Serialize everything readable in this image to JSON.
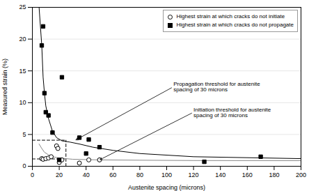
{
  "chart_data": {
    "type": "scatter",
    "xlabel": "Austenite spacing (microns)",
    "ylabel": "Measured strain (%)",
    "xlim": [
      0,
      200
    ],
    "ylim": [
      0,
      25
    ],
    "xticks": [
      0,
      20,
      40,
      60,
      80,
      100,
      120,
      140,
      160,
      180,
      200
    ],
    "yticks": [
      0,
      5,
      10,
      15,
      20,
      25
    ],
    "grid": "y",
    "legend": "upper right",
    "series": [
      {
        "name": "Highest strain at which cracks do not initiate",
        "type": "scatter",
        "marker": "open_circle",
        "color": "#000000",
        "x": [
          7,
          8,
          10,
          12,
          14,
          18,
          19,
          20,
          22,
          35,
          42,
          50
        ],
        "values": [
          1.2,
          1.1,
          1.2,
          1.3,
          1.5,
          3.2,
          2.8,
          0.6,
          1.0,
          0.5,
          1.0,
          1.0
        ]
      },
      {
        "name": "Highest strain at which cracks do not propagate",
        "type": "scatter",
        "marker": "square",
        "color": "#000000",
        "x": [
          7,
          8,
          9,
          10,
          12,
          15,
          20,
          22,
          35,
          40,
          42,
          50,
          128,
          170
        ],
        "values": [
          19.0,
          22.0,
          11.5,
          8.5,
          8.0,
          5.3,
          1.0,
          14.0,
          4.5,
          2.0,
          4.2,
          3.0,
          0.7,
          1.5
        ]
      },
      {
        "type": "line",
        "line_style": "solid",
        "color": "#000000",
        "x": [
          5,
          7,
          8,
          9,
          10,
          12,
          15,
          18,
          22,
          28,
          35,
          45,
          60,
          80,
          120,
          200
        ],
        "values": [
          25,
          19,
          14,
          11.5,
          9.5,
          7.5,
          5.5,
          4.5,
          4.0,
          3.8,
          3.5,
          3.0,
          2.5,
          2.0,
          1.5,
          1.2
        ]
      },
      {
        "type": "line",
        "line_style": "solid",
        "color": "#888888",
        "x": [
          5,
          7,
          9,
          12,
          15,
          20,
          30,
          50,
          80,
          120,
          200
        ],
        "values": [
          3.5,
          2.8,
          2.2,
          1.8,
          1.5,
          1.3,
          1.1,
          1.0,
          0.95,
          0.9,
          0.88
        ]
      },
      {
        "type": "line",
        "line_style": "dashed",
        "color": "#000000",
        "x": [
          25,
          25
        ],
        "values": [
          0,
          4.1
        ]
      },
      {
        "type": "line",
        "line_style": "dashed",
        "color": "#000000",
        "x": [
          0,
          25
        ],
        "values": [
          4.1,
          4.1
        ]
      },
      {
        "type": "line",
        "line_style": "dashed",
        "color": "#000000",
        "x": [
          0,
          25
        ],
        "values": [
          1.15,
          1.15
        ]
      }
    ],
    "annotations": [
      {
        "text": "Propagation threshold for austenite\nspacing of 30 microns",
        "x": 105,
        "y": 12.5,
        "arrow_x": 32,
        "arrow_y": 4.1
      },
      {
        "text": "Initiation threshold for austenite\nspacing of 30 microns",
        "x": 120,
        "y": 8.5,
        "arrow_x": 50,
        "arrow_y": 1.0
      }
    ]
  }
}
